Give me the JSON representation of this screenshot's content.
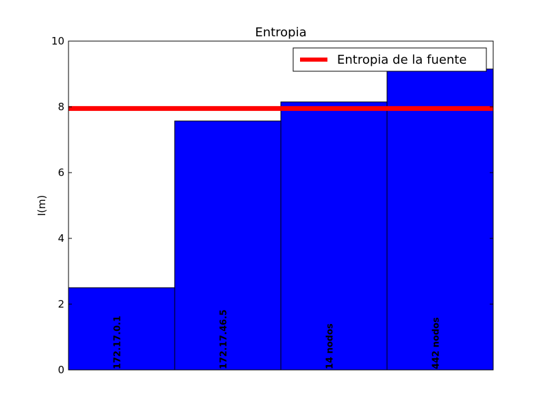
{
  "chart_data": {
    "type": "bar",
    "title": "Entropia",
    "xlabel": "",
    "ylabel": "I(m)",
    "ylim": [
      0,
      10
    ],
    "yticks": [
      "0",
      "2",
      "4",
      "6",
      "8",
      "10"
    ],
    "categories": [
      "172.17.0.1",
      "172.17.46.5",
      "14 nodos",
      "442 nodos"
    ],
    "values": [
      2.5,
      7.57,
      8.15,
      9.15
    ],
    "bar_color": "#0000ff",
    "reference_line": {
      "name": "Entropia de la fuente",
      "value": 7.95,
      "color": "#ff0000"
    },
    "legend_position": "top-right",
    "grid": false
  }
}
